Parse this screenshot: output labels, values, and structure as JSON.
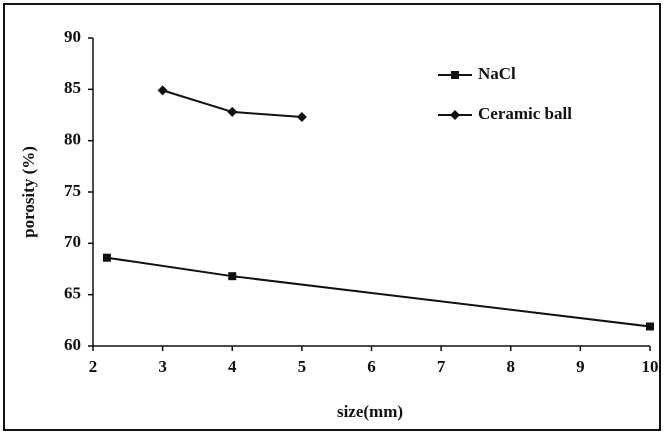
{
  "chart_data": {
    "type": "line",
    "x_label": "size(mm)",
    "y_label": "porosity (%)",
    "xlim": [
      2,
      10
    ],
    "xticks": [
      2,
      3,
      4,
      5,
      6,
      7,
      8,
      9,
      10
    ],
    "ylim": [
      60,
      90
    ],
    "yticks": [
      60,
      65,
      70,
      75,
      80,
      85,
      90
    ],
    "series": [
      {
        "name": "NaCl",
        "color": "#111111",
        "marker": "square",
        "x": [
          2.2,
          4,
          10
        ],
        "values": [
          68.6,
          66.8,
          61.9
        ]
      },
      {
        "name": "Ceramic ball",
        "color": "#111111",
        "marker": "diamond",
        "x": [
          3,
          4,
          5
        ],
        "values": [
          84.9,
          82.8,
          82.3
        ]
      }
    ]
  }
}
